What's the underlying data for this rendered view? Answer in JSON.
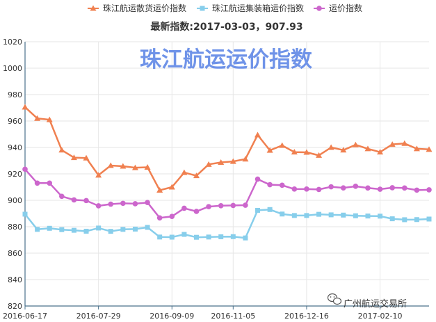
{
  "chart_data": {
    "type": "line",
    "title": "珠江航运运价指数",
    "subtitle": "最新指数:2017-03-03，907.93",
    "xlabel": "",
    "ylabel": "",
    "ylim": [
      820,
      1020
    ],
    "yticks": [
      "1020",
      "1000",
      "980",
      "960",
      "940",
      "920",
      "900",
      "880",
      "860",
      "840",
      "820"
    ],
    "x_tick_labels": [
      "2016-06-17",
      "2016-07-29",
      "2016-09-09",
      "2016-11-05",
      "2016-12-16",
      "2017-02-10"
    ],
    "x_tick_index": [
      0,
      6,
      12,
      17,
      23,
      29
    ],
    "grid": true,
    "legend_position": "top-center",
    "series": [
      {
        "name": "珠江航运散货运价指数",
        "color": "#f08050",
        "marker": "triangle",
        "values": [
          970.5,
          962,
          961,
          938,
          932.3,
          932,
          919,
          926.3,
          925.8,
          924.7,
          925,
          907.6,
          910,
          921,
          918.6,
          927.2,
          928.7,
          929.4,
          931.2,
          949.5,
          937.8,
          941.5,
          936.5,
          936.3,
          934,
          940,
          938,
          942,
          939,
          936.5,
          942.3,
          943,
          939,
          938.5
        ]
      },
      {
        "name": "珠江航运集装箱运价指数",
        "color": "#87ceeb",
        "marker": "square",
        "values": [
          889.5,
          878,
          878.8,
          877.8,
          877.3,
          876.6,
          879,
          876.5,
          878,
          878.2,
          879.5,
          872.2,
          872.1,
          874.2,
          872,
          872.2,
          872.4,
          872.5,
          871.5,
          892.4,
          893,
          889.6,
          888.5,
          888.5,
          889.4,
          889,
          888.8,
          888.3,
          888.1,
          888,
          886,
          885.3,
          885.4,
          885.8
        ]
      },
      {
        "name": "运价指数",
        "color": "#cc66cc",
        "marker": "circle",
        "values": [
          923.5,
          913,
          913,
          903,
          900.3,
          899.8,
          895.8,
          897.1,
          897.7,
          897.4,
          898.3,
          886.7,
          887.8,
          894,
          891.6,
          895.2,
          895.9,
          896.1,
          896.3,
          916,
          911.8,
          911.4,
          908.5,
          908.5,
          908.2,
          910.2,
          909.4,
          910.6,
          909.3,
          908.4,
          909.5,
          909.3,
          907.7,
          907.93
        ]
      }
    ]
  },
  "watermark": {
    "label": "广州航运交易所",
    "icon": "wechat-icon"
  }
}
